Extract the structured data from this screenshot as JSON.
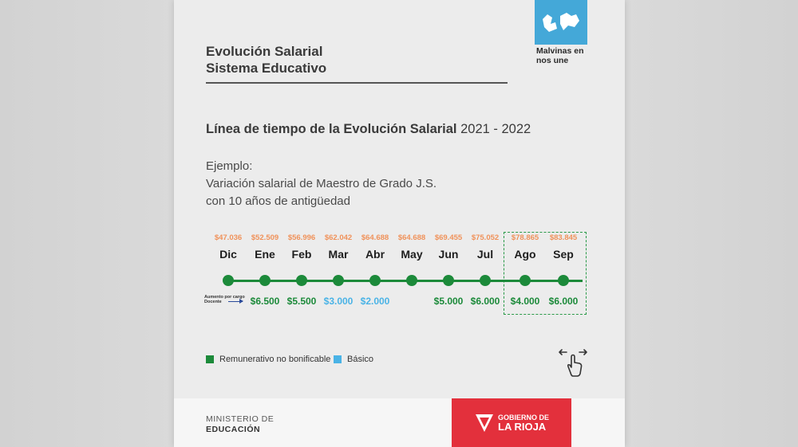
{
  "header": {
    "title_line1": "Evolución Salarial",
    "title_line2": "Sistema Educativo",
    "logo_line1": "Malvinas en",
    "logo_line2": "nos une"
  },
  "subtitle": {
    "bold": "Línea de tiempo de la Evolución Salarial",
    "years": " 2021 - 2022"
  },
  "example": {
    "line1": "Ejemplo:",
    "line2": "Variación salarial de Maestro de Grado J.S.",
    "line3": "con 10 años de antigüedad"
  },
  "timeline": {
    "months": [
      {
        "name": "Dic",
        "amount": "$47.036",
        "increase": "",
        "type": ""
      },
      {
        "name": "Ene",
        "amount": "$52.509",
        "increase": "$6.500",
        "type": "green"
      },
      {
        "name": "Feb",
        "amount": "$56.996",
        "increase": "$5.500",
        "type": "green"
      },
      {
        "name": "Mar",
        "amount": "$62.042",
        "increase": "$3.000",
        "type": "blue"
      },
      {
        "name": "Abr",
        "amount": "$64.688",
        "increase": "$2.000",
        "type": "blue"
      },
      {
        "name": "May",
        "amount": "$64.688",
        "increase": "",
        "type": ""
      },
      {
        "name": "Jun",
        "amount": "$69.455",
        "increase": "$5.000",
        "type": "green"
      },
      {
        "name": "Jul",
        "amount": "$75.052",
        "increase": "$6.000",
        "type": "green"
      },
      {
        "name": "Ago",
        "amount": "$78.865",
        "increase": "$4.000",
        "type": "green"
      },
      {
        "name": "Sep",
        "amount": "$83.845",
        "increase": "$6.000",
        "type": "green"
      }
    ],
    "aumento_line1": "Aumento por cargo",
    "aumento_line2": "Docente"
  },
  "legend": {
    "remunerativo": "Remunerativo no bonificable",
    "basico": "Básico",
    "remunerativo_color": "#1c8a3a",
    "basico_color": "#4ab3e6"
  },
  "footer": {
    "ministry_line1": "MINISTERIO DE",
    "ministry_line2": "EDUCACIÓN",
    "gob_line1": "GOBIERNO DE",
    "gob_line2": "LA RIOJA"
  },
  "icons": [
    "malvinas-logo-icon",
    "swipe-hand-icon",
    "rioja-logo-icon"
  ]
}
